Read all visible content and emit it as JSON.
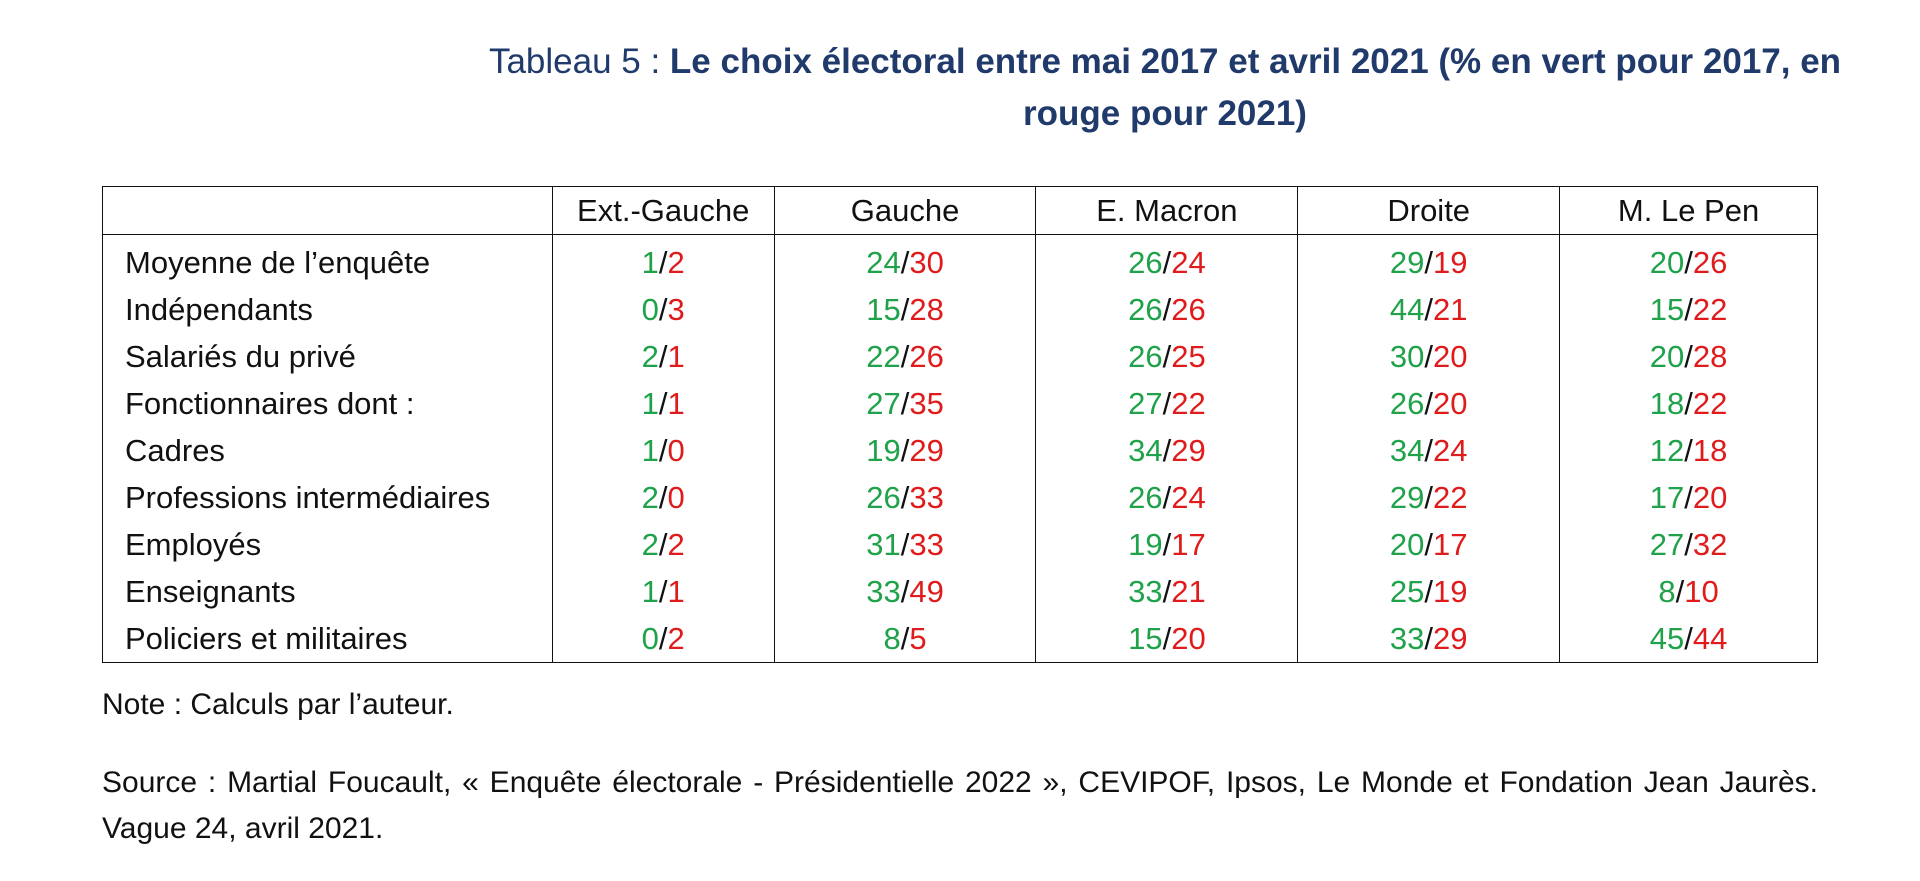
{
  "title": {
    "prefix": "Tableau 5 : ",
    "text": "Le choix électoral entre mai 2017 et avril 2021 (% en vert pour 2017, en rouge pour 2021)"
  },
  "table": {
    "headers": [
      "",
      "Ext.-Gauche",
      "Gauche",
      "E. Macron",
      "Droite",
      "M. Le Pen"
    ],
    "rows": [
      {
        "label": "Moyenne de l’enquête",
        "cells": [
          [
            "1",
            "2"
          ],
          [
            "24",
            "30"
          ],
          [
            "26",
            "24"
          ],
          [
            "29",
            "19"
          ],
          [
            "20",
            "26"
          ]
        ]
      },
      {
        "label": "Indépendants",
        "cells": [
          [
            "0",
            "3"
          ],
          [
            "15",
            "28"
          ],
          [
            "26",
            "26"
          ],
          [
            "44",
            "21"
          ],
          [
            "15",
            "22"
          ]
        ]
      },
      {
        "label": "Salariés du privé",
        "cells": [
          [
            "2",
            "1"
          ],
          [
            "22",
            "26"
          ],
          [
            "26",
            "25"
          ],
          [
            "30",
            "20"
          ],
          [
            "20",
            "28"
          ]
        ]
      },
      {
        "label": "Fonctionnaires dont :",
        "cells": [
          [
            "1",
            "1"
          ],
          [
            "27",
            "35"
          ],
          [
            "27",
            "22"
          ],
          [
            "26",
            "20"
          ],
          [
            "18",
            "22"
          ]
        ]
      },
      {
        "label": "Cadres",
        "cells": [
          [
            "1",
            "0"
          ],
          [
            "19",
            "29"
          ],
          [
            "34",
            "29"
          ],
          [
            "34",
            "24"
          ],
          [
            "12",
            "18"
          ]
        ]
      },
      {
        "label": "Professions intermédiaires",
        "cells": [
          [
            "2",
            "0"
          ],
          [
            "26",
            "33"
          ],
          [
            "26",
            "24"
          ],
          [
            "29",
            "22"
          ],
          [
            "17",
            "20"
          ]
        ]
      },
      {
        "label": "Employés",
        "cells": [
          [
            "2",
            "2"
          ],
          [
            "31",
            "33"
          ],
          [
            "19",
            "17"
          ],
          [
            "20",
            "17"
          ],
          [
            "27",
            "32"
          ]
        ]
      },
      {
        "label": "Enseignants",
        "cells": [
          [
            "1",
            "1"
          ],
          [
            "33",
            "49"
          ],
          [
            "33",
            "21"
          ],
          [
            "25",
            "19"
          ],
          [
            "8",
            "10"
          ]
        ]
      },
      {
        "label": "Policiers et militaires",
        "cells": [
          [
            "0",
            "2"
          ],
          [
            "8",
            "5"
          ],
          [
            "15",
            "20"
          ],
          [
            "33",
            "29"
          ],
          [
            "45",
            "44"
          ]
        ]
      }
    ]
  },
  "colors": {
    "year_2017": "#1fa24a",
    "year_2021": "#e01b1b",
    "title": "#1f3a6b"
  },
  "note": "Note : Calculs par l’auteur.",
  "source": "Source : Martial Foucault, « Enquête électorale - Présidentielle 2022 », CEVIPOF, Ipsos, Le Monde et Fondation Jean Jaurès.  Vague 24, avril 2021."
}
